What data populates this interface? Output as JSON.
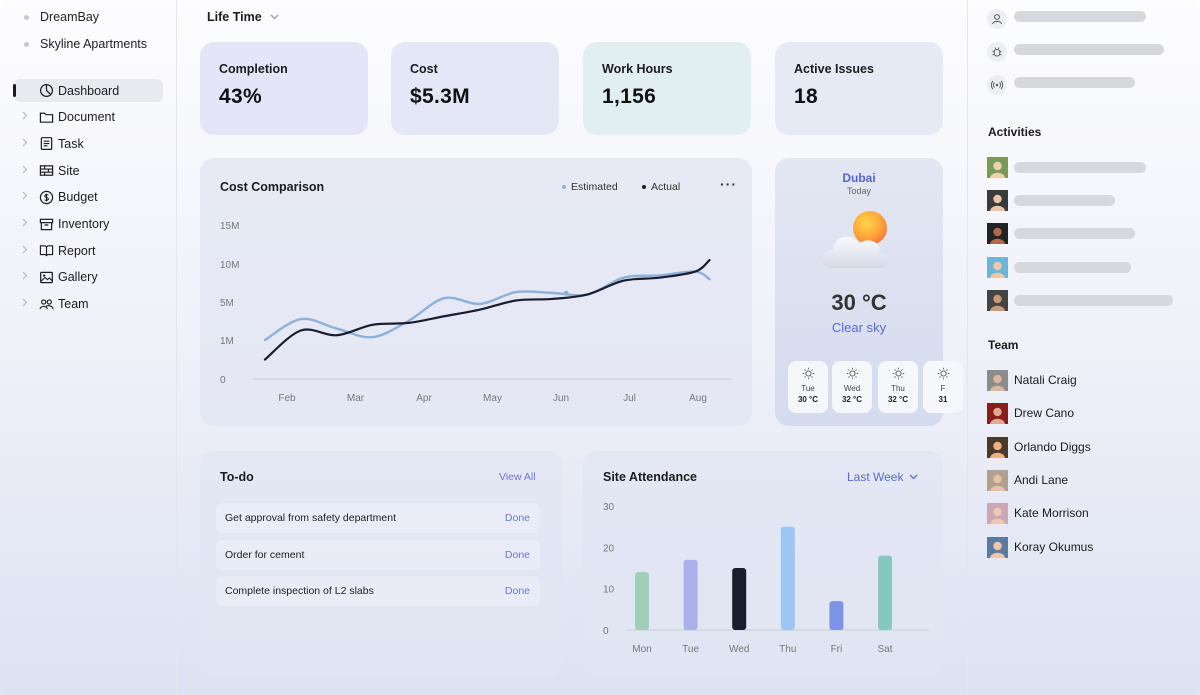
{
  "sidebar": {
    "projects": [
      "DreamBay",
      "Skyline Apartments"
    ],
    "nav": [
      {
        "label": "Dashboard",
        "icon": "pie-chart-icon",
        "active": true
      },
      {
        "label": "Document",
        "icon": "folder-icon"
      },
      {
        "label": "Task",
        "icon": "task-icon"
      },
      {
        "label": "Site",
        "icon": "site-icon"
      },
      {
        "label": "Budget",
        "icon": "dollar-icon"
      },
      {
        "label": "Inventory",
        "icon": "inventory-icon"
      },
      {
        "label": "Report",
        "icon": "book-icon"
      },
      {
        "label": "Gallery",
        "icon": "image-icon"
      },
      {
        "label": "Team",
        "icon": "team-icon"
      }
    ]
  },
  "header": {
    "filter": "Life Time"
  },
  "stats": [
    {
      "label": "Completion",
      "value": "43%",
      "color": "#e5e4f8"
    },
    {
      "label": "Cost",
      "value": "$5.3M",
      "color": "#e3e7f6"
    },
    {
      "label": "Work Hours",
      "value": "1,156",
      "color": "#e1eef2"
    },
    {
      "label": "Active Issues",
      "value": "18",
      "color": "#e6eaf4"
    }
  ],
  "cost_comparison": {
    "title": "Cost Comparison",
    "legend": [
      "Estimated",
      "Actual"
    ],
    "more": "···"
  },
  "weather": {
    "city": "Dubai",
    "day": "Today",
    "temp": "30 °C",
    "desc": "Clear sky",
    "forecast": [
      {
        "day": "Tue",
        "temp": "30 °C"
      },
      {
        "day": "Wed",
        "temp": "32 °C"
      },
      {
        "day": "Thu",
        "temp": "32 °C"
      },
      {
        "day": "F",
        "temp": "31"
      }
    ]
  },
  "todo": {
    "title": "To-do",
    "view_all": "View All",
    "items": [
      {
        "text": "Get approval from safety department",
        "status": "Done"
      },
      {
        "text": "Order for cement",
        "status": "Done"
      },
      {
        "text": "Complete inspection of L2 slabs",
        "status": "Done"
      }
    ]
  },
  "attendance": {
    "title": "Site Attendance",
    "range": "Last Week"
  },
  "right": {
    "activities_title": "Activities",
    "team_title": "Team",
    "team": [
      "Natali Craig",
      "Drew Cano",
      "Orlando Diggs",
      "Andi Lane",
      "Kate Morrison",
      "Koray Okumus"
    ]
  },
  "chart_data": [
    {
      "type": "line",
      "title": "Cost Comparison",
      "categories": [
        "Feb",
        "Mar",
        "Apr",
        "May",
        "Jun",
        "Jul",
        "Aug"
      ],
      "y_ticks": [
        "0",
        "1M",
        "5M",
        "10M",
        "15M"
      ],
      "x": [
        0,
        0.5,
        1,
        1.5,
        2,
        2.5,
        3,
        3.5,
        4,
        4.5,
        5,
        5.5,
        6,
        6.2
      ],
      "series": [
        {
          "name": "Estimated",
          "color": "#8fb0d9",
          "values": [
            1.0,
            3.2,
            2.2,
            1.3,
            3.0,
            5.5,
            4.8,
            6.3,
            6.2,
            6.0,
            8.2,
            8.5,
            9.0,
            8.0
          ]
        },
        {
          "name": "Actual",
          "color": "#1a1d2e",
          "values": [
            0.5,
            2.0,
            1.5,
            2.6,
            2.8,
            3.5,
            4.2,
            5.2,
            5.4,
            6.0,
            7.8,
            8.2,
            9.0,
            10.5
          ]
        }
      ]
    },
    {
      "type": "bar",
      "title": "Site Attendance",
      "categories": [
        "Mon",
        "Tue",
        "Wed",
        "Thu",
        "Fri",
        "Sat"
      ],
      "values": [
        14,
        17,
        15,
        25,
        7,
        18
      ],
      "colors": [
        "#9fcfb6",
        "#a9b0ea",
        "#1a1d2e",
        "#9dc6f2",
        "#7e92e6",
        "#86c7bf"
      ],
      "y_ticks": [
        0,
        10,
        20,
        30
      ],
      "ylim": [
        0,
        30
      ]
    }
  ]
}
